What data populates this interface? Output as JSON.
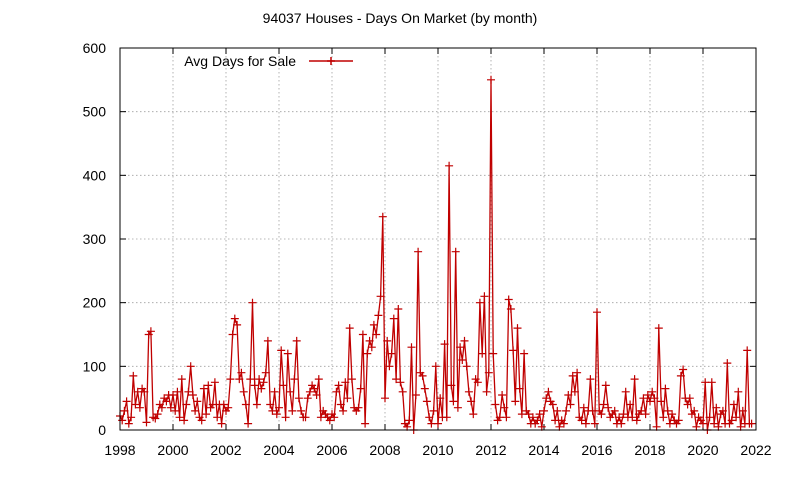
{
  "chart_data": {
    "type": "line",
    "title": "94037 Houses - Days On Market (by month)",
    "xlabel": "",
    "ylabel": "",
    "xlim": [
      1998,
      2022
    ],
    "ylim": [
      0,
      600
    ],
    "x_ticks": [
      "1998",
      "2000",
      "2002",
      "2004",
      "2006",
      "2008",
      "2010",
      "2012",
      "2014",
      "2016",
      "2018",
      "2020",
      "2022"
    ],
    "y_ticks": [
      "0",
      "100",
      "200",
      "300",
      "400",
      "500",
      "600"
    ],
    "grid": true,
    "legend_position": "top-left",
    "line_color": "#c00000",
    "series": [
      {
        "name": "Avg Days for Sale",
        "x": [
          1998.0,
          1998.083,
          1998.167,
          1998.25,
          1998.333,
          1998.417,
          1998.5,
          1998.583,
          1998.667,
          1998.75,
          1998.833,
          1998.917,
          1999.0,
          1999.083,
          1999.167,
          1999.25,
          1999.333,
          1999.417,
          1999.5,
          1999.583,
          1999.667,
          1999.75,
          1999.833,
          1999.917,
          2000.0,
          2000.083,
          2000.167,
          2000.25,
          2000.333,
          2000.417,
          2000.5,
          2000.583,
          2000.667,
          2000.75,
          2000.833,
          2000.917,
          2001.0,
          2001.083,
          2001.167,
          2001.25,
          2001.333,
          2001.417,
          2001.5,
          2001.583,
          2001.667,
          2001.75,
          2001.833,
          2001.917,
          2002.0,
          2002.083,
          2002.167,
          2002.25,
          2002.333,
          2002.417,
          2002.5,
          2002.583,
          2002.667,
          2002.75,
          2002.833,
          2002.917,
          2003.0,
          2003.083,
          2003.167,
          2003.25,
          2003.333,
          2003.417,
          2003.5,
          2003.583,
          2003.667,
          2003.75,
          2003.833,
          2003.917,
          2004.0,
          2004.083,
          2004.167,
          2004.25,
          2004.333,
          2004.417,
          2004.5,
          2004.583,
          2004.667,
          2004.75,
          2004.833,
          2004.917,
          2005.0,
          2005.083,
          2005.167,
          2005.25,
          2005.333,
          2005.417,
          2005.5,
          2005.583,
          2005.667,
          2005.75,
          2005.833,
          2005.917,
          2006.0,
          2006.083,
          2006.167,
          2006.25,
          2006.333,
          2006.417,
          2006.5,
          2006.583,
          2006.667,
          2006.75,
          2006.833,
          2006.917,
          2007.0,
          2007.083,
          2007.167,
          2007.25,
          2007.333,
          2007.417,
          2007.5,
          2007.583,
          2007.667,
          2007.75,
          2007.833,
          2007.917,
          2008.0,
          2008.083,
          2008.167,
          2008.25,
          2008.333,
          2008.417,
          2008.5,
          2008.583,
          2008.667,
          2008.75,
          2008.833,
          2008.917,
          2009.0,
          2009.083,
          2009.167,
          2009.25,
          2009.333,
          2009.417,
          2009.5,
          2009.583,
          2009.667,
          2009.75,
          2009.833,
          2009.917,
          2010.0,
          2010.083,
          2010.167,
          2010.25,
          2010.333,
          2010.417,
          2010.5,
          2010.583,
          2010.667,
          2010.75,
          2010.833,
          2010.917,
          2011.0,
          2011.083,
          2011.167,
          2011.25,
          2011.333,
          2011.417,
          2011.5,
          2011.583,
          2011.667,
          2011.75,
          2011.833,
          2011.917,
          2012.0,
          2012.083,
          2012.167,
          2012.25,
          2012.333,
          2012.417,
          2012.5,
          2012.583,
          2012.667,
          2012.75,
          2012.833,
          2012.917,
          2013.0,
          2013.083,
          2013.167,
          2013.25,
          2013.333,
          2013.417,
          2013.5,
          2013.583,
          2013.667,
          2013.75,
          2013.833,
          2013.917,
          2014.0,
          2014.083,
          2014.167,
          2014.25,
          2014.333,
          2014.417,
          2014.5,
          2014.583,
          2014.667,
          2014.75,
          2014.833,
          2014.917,
          2015.0,
          2015.083,
          2015.167,
          2015.25,
          2015.333,
          2015.417,
          2015.5,
          2015.583,
          2015.667,
          2015.75,
          2015.833,
          2015.917,
          2016.0,
          2016.083,
          2016.167,
          2016.25,
          2016.333,
          2016.417,
          2016.5,
          2016.583,
          2016.667,
          2016.75,
          2016.833,
          2016.917,
          2017.0,
          2017.083,
          2017.167,
          2017.25,
          2017.333,
          2017.417,
          2017.5,
          2017.583,
          2017.667,
          2017.75,
          2017.833,
          2017.917,
          2018.0,
          2018.083,
          2018.167,
          2018.25,
          2018.333,
          2018.417,
          2018.5,
          2018.583,
          2018.667,
          2018.75,
          2018.833,
          2018.917,
          2019.0,
          2019.083,
          2019.167,
          2019.25,
          2019.333,
          2019.417,
          2019.5,
          2019.583,
          2019.667,
          2019.75,
          2019.833,
          2019.917,
          2020.0,
          2020.083,
          2020.167,
          2020.25,
          2020.333,
          2020.417,
          2020.5,
          2020.583,
          2020.667,
          2020.75,
          2020.833,
          2020.917,
          2021.0,
          2021.083,
          2021.167,
          2021.25,
          2021.333,
          2021.417,
          2021.5,
          2021.583,
          2021.667,
          2021.75,
          2021.833
        ],
        "values": [
          22,
          15,
          30,
          45,
          10,
          20,
          85,
          40,
          60,
          35,
          65,
          60,
          12,
          150,
          155,
          20,
          18,
          25,
          40,
          35,
          50,
          45,
          55,
          35,
          55,
          30,
          60,
          20,
          80,
          15,
          40,
          60,
          100,
          55,
          30,
          45,
          20,
          15,
          65,
          25,
          70,
          35,
          40,
          75,
          20,
          40,
          10,
          40,
          30,
          35,
          80,
          150,
          175,
          165,
          80,
          90,
          60,
          40,
          10,
          80,
          200,
          70,
          40,
          80,
          65,
          75,
          90,
          140,
          40,
          30,
          60,
          25,
          35,
          125,
          70,
          20,
          120,
          60,
          30,
          80,
          140,
          50,
          30,
          20,
          20,
          50,
          60,
          70,
          65,
          55,
          80,
          20,
          30,
          25,
          20,
          15,
          25,
          20,
          60,
          70,
          40,
          30,
          75,
          50,
          160,
          80,
          35,
          30,
          35,
          65,
          150,
          10,
          120,
          140,
          130,
          165,
          150,
          180,
          210,
          335,
          50,
          140,
          100,
          120,
          175,
          80,
          190,
          75,
          60,
          10,
          5,
          15,
          130,
          0,
          55,
          280,
          90,
          85,
          65,
          45,
          20,
          10,
          30,
          100,
          10,
          50,
          20,
          135,
          20,
          415,
          70,
          45,
          280,
          35,
          130,
          110,
          140,
          100,
          60,
          45,
          25,
          80,
          75,
          200,
          120,
          210,
          60,
          90,
          550,
          120,
          40,
          15,
          20,
          55,
          35,
          20,
          205,
          190,
          125,
          45,
          160,
          65,
          25,
          120,
          30,
          25,
          10,
          20,
          10,
          15,
          25,
          5,
          30,
          50,
          60,
          45,
          40,
          15,
          30,
          5,
          15,
          10,
          30,
          55,
          40,
          85,
          60,
          90,
          20,
          15,
          35,
          10,
          30,
          80,
          30,
          10,
          185,
          30,
          25,
          40,
          70,
          35,
          20,
          25,
          30,
          10,
          20,
          10,
          25,
          60,
          20,
          40,
          20,
          80,
          15,
          25,
          30,
          50,
          25,
          55,
          45,
          60,
          50,
          5,
          160,
          45,
          20,
          65,
          30,
          10,
          25,
          15,
          10,
          15,
          85,
          95,
          50,
          40,
          50,
          25,
          30,
          5,
          20,
          15,
          10,
          75,
          0,
          20,
          75,
          10,
          35,
          5,
          25,
          30,
          10,
          105,
          10,
          15,
          40,
          20,
          60,
          5,
          30,
          10,
          125,
          10,
          10
        ]
      }
    ]
  }
}
